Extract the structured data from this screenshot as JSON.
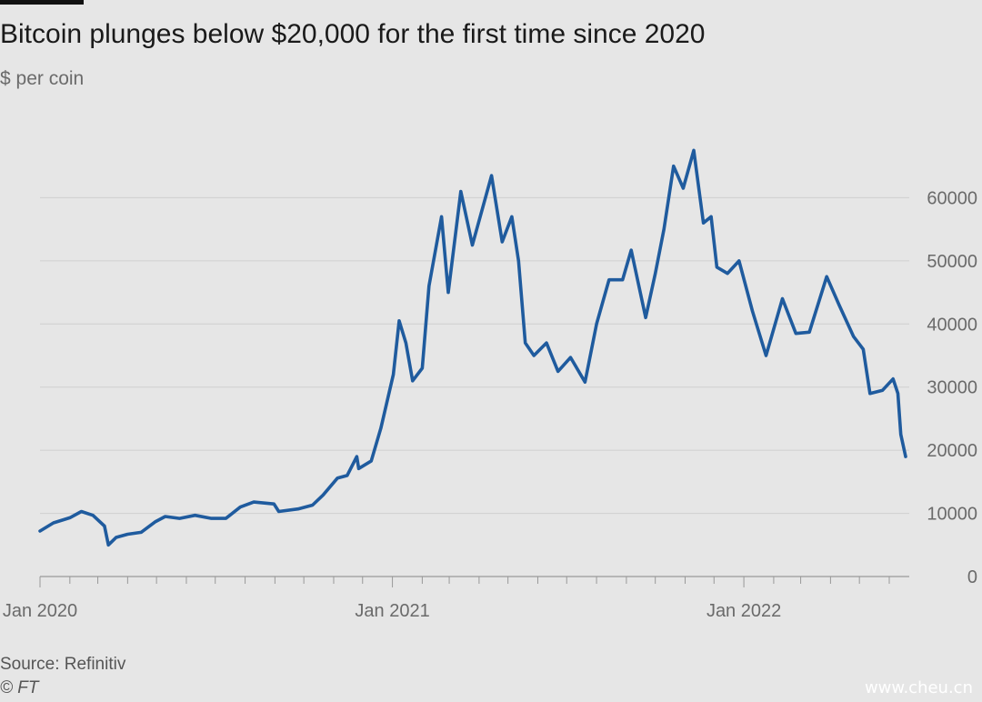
{
  "title": "Bitcoin plunges below $20,000 for the first time since 2020",
  "subtitle": "$ per coin",
  "footer": {
    "source": "Source: Refinitiv",
    "copyright": "© FT"
  },
  "watermark": "www.cheu.cn",
  "colors": {
    "line": "#1f5b9e",
    "grid": "#cfcfcf",
    "axis": "#999999",
    "background": "#e6e6e6"
  },
  "chart_data": {
    "type": "line",
    "title": "Bitcoin plunges below $20,000 for the first time since 2020",
    "ylabel": "$ per coin",
    "xlabel": "",
    "ylim": [
      0,
      70000
    ],
    "xlim": [
      "2020-01-01",
      "2022-06-18"
    ],
    "y_ticks": [
      0,
      10000,
      20000,
      30000,
      40000,
      50000,
      60000
    ],
    "y_tick_labels": [
      "0",
      "10000",
      "20000",
      "30000",
      "40000",
      "50000",
      "60000"
    ],
    "x_ticks": [
      "2020-01-01",
      "2021-01-01",
      "2022-01-01"
    ],
    "x_tick_labels": [
      "Jan 2020",
      "Jan 2021",
      "Jan 2022"
    ],
    "grid": "horizontal",
    "y_axis_position": "right",
    "series": [
      {
        "values_x": [
          "2020-01-01",
          "2020-01-15",
          "2020-02-01",
          "2020-02-13",
          "2020-02-25",
          "2020-03-08",
          "2020-03-12",
          "2020-03-20",
          "2020-04-01",
          "2020-04-15",
          "2020-04-30",
          "2020-05-10",
          "2020-05-25",
          "2020-06-10",
          "2020-06-27",
          "2020-07-12",
          "2020-07-27",
          "2020-08-10",
          "2020-08-31",
          "2020-09-05",
          "2020-09-25",
          "2020-10-10",
          "2020-10-21",
          "2020-11-05",
          "2020-11-15",
          "2020-11-25",
          "2020-11-27",
          "2020-12-10",
          "2020-12-20",
          "2021-01-02",
          "2021-01-08",
          "2021-01-15",
          "2021-01-22",
          "2021-02-01",
          "2021-02-08",
          "2021-02-21",
          "2021-02-28",
          "2021-03-13",
          "2021-03-25",
          "2021-04-14",
          "2021-04-25",
          "2021-05-05",
          "2021-05-12",
          "2021-05-19",
          "2021-05-28",
          "2021-06-10",
          "2021-06-22",
          "2021-07-05",
          "2021-07-20",
          "2021-08-01",
          "2021-08-14",
          "2021-08-28",
          "2021-09-06",
          "2021-09-21",
          "2021-10-01",
          "2021-10-10",
          "2021-10-20",
          "2021-10-30",
          "2021-11-10",
          "2021-11-20",
          "2021-11-28",
          "2021-12-04",
          "2021-12-15",
          "2021-12-27",
          "2022-01-10",
          "2022-01-24",
          "2022-02-10",
          "2022-02-24",
          "2022-03-10",
          "2022-03-28",
          "2022-04-10",
          "2022-04-25",
          "2022-05-05",
          "2022-05-12",
          "2022-05-25",
          "2022-06-05",
          "2022-06-10",
          "2022-06-13",
          "2022-06-18"
        ],
        "values_y": [
          7200,
          8500,
          9300,
          10300,
          9700,
          8000,
          5000,
          6200,
          6700,
          7000,
          8700,
          9500,
          9200,
          9700,
          9200,
          9200,
          11000,
          11800,
          11500,
          10300,
          10700,
          11300,
          12900,
          15600,
          16000,
          19000,
          17100,
          18300,
          23500,
          32000,
          40500,
          37000,
          31000,
          33000,
          46000,
          57000,
          45000,
          61000,
          52500,
          63500,
          53000,
          57000,
          50000,
          37000,
          35000,
          37000,
          32500,
          34700,
          30800,
          40000,
          47000,
          47000,
          51700,
          41000,
          48000,
          55000,
          65000,
          61500,
          67500,
          56000,
          57000,
          49000,
          48000,
          50000,
          42000,
          35000,
          44000,
          38500,
          38700,
          47500,
          43000,
          38000,
          36000,
          29000,
          29500,
          31300,
          29000,
          22500,
          19000
        ]
      }
    ]
  }
}
